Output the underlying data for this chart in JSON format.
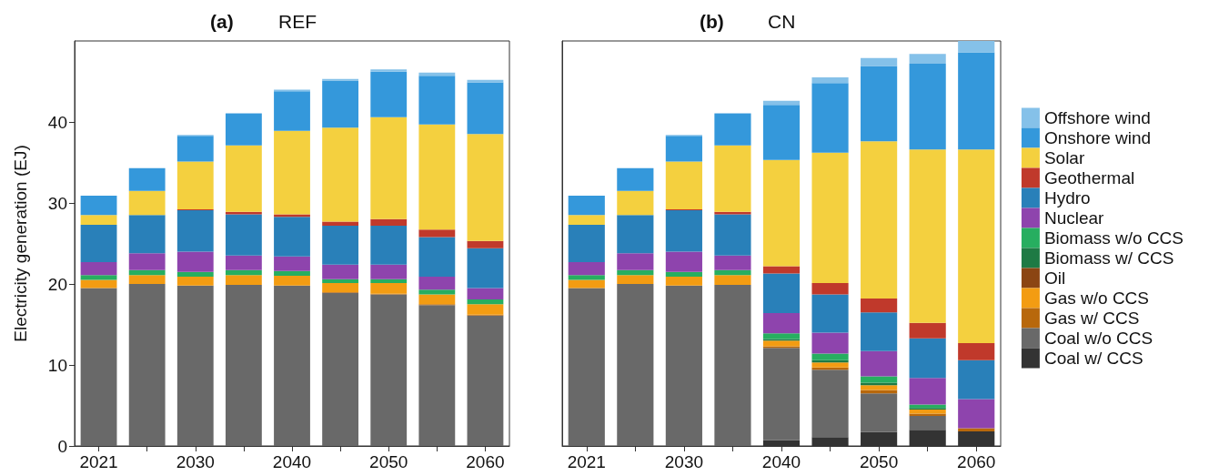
{
  "chart_data": [
    {
      "type": "bar",
      "title": "(a)",
      "subtitle": "REF",
      "ylabel": "Electricity generation (EJ)",
      "categories": [
        "2021",
        null,
        "2030",
        null,
        "2040",
        null,
        "2050",
        null,
        "2060"
      ],
      "stacked": true,
      "ylim": [
        0,
        50
      ],
      "yticks": [
        0,
        10,
        20,
        30,
        40
      ],
      "grid": false,
      "legend": false,
      "series": [
        {
          "color": "#333333",
          "values": [
            0,
            0,
            0,
            0,
            0,
            0,
            0,
            0,
            0
          ]
        },
        {
          "color": "#696969",
          "values": [
            19.5,
            20.0,
            19.8,
            19.9,
            19.8,
            18.9,
            18.7,
            17.4,
            16.1
          ]
        },
        {
          "color": "#b8680c",
          "values": [
            0,
            0,
            0,
            0,
            0,
            0.1,
            0.1,
            0.1,
            0.1
          ]
        },
        {
          "color": "#f39c12",
          "values": [
            1.0,
            1.1,
            1.1,
            1.2,
            1.2,
            1.1,
            1.3,
            1.2,
            1.3
          ]
        },
        {
          "color": "#8b4513",
          "values": [
            0,
            0,
            0,
            0,
            0,
            0,
            0,
            0,
            0
          ]
        },
        {
          "color": "#1e7a44",
          "values": [
            0,
            0,
            0,
            0,
            0,
            0,
            0,
            0,
            0
          ]
        },
        {
          "color": "#27ae60",
          "values": [
            0.6,
            0.6,
            0.6,
            0.6,
            0.6,
            0.5,
            0.5,
            0.6,
            0.6
          ]
        },
        {
          "color": "#8e44ad",
          "values": [
            1.6,
            2.1,
            2.5,
            1.8,
            1.8,
            1.8,
            1.8,
            1.6,
            1.4
          ]
        },
        {
          "color": "#2980b9",
          "values": [
            4.6,
            4.7,
            5.1,
            5.1,
            4.9,
            4.8,
            4.8,
            4.9,
            4.9
          ]
        },
        {
          "color": "#c0392b",
          "values": [
            0,
            0,
            0.1,
            0.3,
            0.3,
            0.5,
            0.8,
            0.9,
            0.9
          ]
        },
        {
          "color": "#f4d03f",
          "values": [
            1.2,
            3.0,
            5.9,
            8.2,
            10.3,
            11.6,
            12.6,
            13.0,
            13.2
          ]
        },
        {
          "color": "#3498db",
          "values": [
            2.4,
            2.8,
            3.2,
            3.9,
            4.9,
            5.8,
            5.6,
            6.0,
            6.4
          ]
        },
        {
          "color": "#85c1e9",
          "values": [
            0,
            0,
            0.1,
            0.1,
            0.2,
            0.2,
            0.3,
            0.4,
            0.3
          ]
        }
      ]
    },
    {
      "type": "bar",
      "title": "(b)",
      "subtitle": "CN",
      "categories": [
        "2021",
        null,
        "2030",
        null,
        "2040",
        null,
        "2050",
        null,
        "2060"
      ],
      "stacked": true,
      "ylim": [
        0,
        50
      ],
      "tick_labels": "x",
      "grid": false,
      "legend": "right",
      "series": [
        {
          "name": "Coal w/ CCS",
          "color": "#333333",
          "values": [
            0,
            0,
            0,
            0,
            0.7,
            1.1,
            1.7,
            2.0,
            1.8
          ]
        },
        {
          "name": "Coal w/o CCS",
          "color": "#696969",
          "values": [
            19.5,
            20.0,
            19.8,
            19.9,
            11.4,
            8.3,
            4.8,
            1.7,
            0
          ]
        },
        {
          "name": "Gas w/ CCS",
          "color": "#b8680c",
          "values": [
            0,
            0,
            0,
            0,
            0.2,
            0.3,
            0.4,
            0.3,
            0.4
          ]
        },
        {
          "name": "Gas w/o CCS",
          "color": "#f39c12",
          "values": [
            1.0,
            1.1,
            1.1,
            1.2,
            0.7,
            0.6,
            0.6,
            0.5,
            0
          ]
        },
        {
          "name": "Oil",
          "color": "#8b4513",
          "values": [
            0,
            0,
            0,
            0,
            0,
            0,
            0,
            0,
            0
          ]
        },
        {
          "name": "Biomass w/ CCS",
          "color": "#1e7a44",
          "values": [
            0,
            0,
            0,
            0,
            0.2,
            0.3,
            0.3,
            0.2,
            0
          ]
        },
        {
          "name": "Biomass w/o CCS",
          "color": "#27ae60",
          "values": [
            0.6,
            0.6,
            0.6,
            0.6,
            0.7,
            0.8,
            0.8,
            0.4,
            0
          ]
        },
        {
          "name": "Nuclear",
          "color": "#8e44ad",
          "values": [
            1.6,
            2.1,
            2.5,
            1.8,
            2.5,
            2.6,
            3.1,
            3.3,
            3.6
          ]
        },
        {
          "name": "Hydro",
          "color": "#2980b9",
          "values": [
            4.6,
            4.7,
            5.1,
            5.1,
            4.9,
            4.7,
            4.8,
            4.9,
            4.8
          ]
        },
        {
          "name": "Geothermal",
          "color": "#c0392b",
          "values": [
            0,
            0,
            0.1,
            0.3,
            0.9,
            1.4,
            1.7,
            1.9,
            2.1
          ]
        },
        {
          "name": "Solar",
          "color": "#f4d03f",
          "values": [
            1.2,
            3.0,
            5.9,
            8.2,
            13.1,
            16.1,
            19.4,
            21.4,
            23.9
          ]
        },
        {
          "name": "Onshore wind",
          "color": "#3498db",
          "values": [
            2.4,
            2.8,
            3.2,
            3.9,
            6.8,
            8.6,
            9.3,
            10.6,
            12.0
          ]
        },
        {
          "name": "Offshore wind",
          "color": "#85c1e9",
          "values": [
            0,
            0,
            0.1,
            0.1,
            0.5,
            0.7,
            1.0,
            1.2,
            1.4
          ]
        }
      ]
    }
  ]
}
